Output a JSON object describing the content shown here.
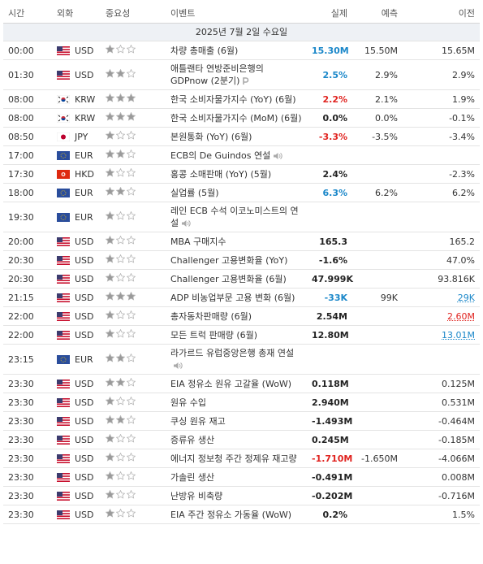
{
  "table": {
    "columns": [
      "시간",
      "외화",
      "중요성",
      "이벤트",
      "실제",
      "예측",
      "이전"
    ],
    "date": "2025년 7월 2일 수요일",
    "rows": [
      {
        "time": "00:00",
        "currency": "USD",
        "importance": 1,
        "event": "차량 총매출 (6월)",
        "actual": "15.30M",
        "actual_color": "#1a87c9",
        "forecast": "15.50M",
        "previous": "15.65M"
      },
      {
        "time": "01:30",
        "currency": "USD",
        "importance": 2,
        "event": "애틀랜타 연방준비은행의 GDPnow (2분기)",
        "actual": "2.5%",
        "actual_color": "#1a87c9",
        "forecast": "2.9%",
        "previous": "2.9%",
        "icon": "preliminary"
      },
      {
        "time": "08:00",
        "currency": "KRW",
        "importance": 3,
        "event": "한국 소비자물가지수 (YoY) (6월)",
        "actual": "2.2%",
        "actual_color": "#e0231f",
        "forecast": "2.1%",
        "previous": "1.9%"
      },
      {
        "time": "08:00",
        "currency": "KRW",
        "importance": 3,
        "event": "한국 소비자물가지수 (MoM) (6월)",
        "actual": "0.0%",
        "forecast": "0.0%",
        "previous": "-0.1%"
      },
      {
        "time": "08:50",
        "currency": "JPY",
        "importance": 1,
        "event": "본원통화 (YoY) (6월)",
        "actual": "-3.3%",
        "actual_color": "#e0231f",
        "forecast": "-3.5%",
        "previous": "-3.4%"
      },
      {
        "time": "17:00",
        "currency": "EUR",
        "importance": 2,
        "event": "ECB의 De Guindos 연설",
        "icon": "speech"
      },
      {
        "time": "17:30",
        "currency": "HKD",
        "importance": 1,
        "event": "홍콩 소매판매 (YoY) (5월)",
        "actual": "2.4%",
        "previous": "-2.3%"
      },
      {
        "time": "18:00",
        "currency": "EUR",
        "importance": 2,
        "event": "실업률 (5월)",
        "actual": "6.3%",
        "actual_color": "#1a87c9",
        "forecast": "6.2%",
        "previous": "6.2%"
      },
      {
        "time": "19:30",
        "currency": "EUR",
        "importance": 1,
        "event": "레인 ECB 수석 이코노미스트의 연설",
        "icon": "speech"
      },
      {
        "time": "20:00",
        "currency": "USD",
        "importance": 1,
        "event": "MBA 구매지수",
        "actual": "165.3",
        "previous": "165.2"
      },
      {
        "time": "20:30",
        "currency": "USD",
        "importance": 1,
        "event": "Challenger 고용변화율 (YoY)",
        "actual": "-1.6%",
        "previous": "47.0%"
      },
      {
        "time": "20:30",
        "currency": "USD",
        "importance": 1,
        "event": "Challenger 고용변화율 (6월)",
        "actual": "47.999K",
        "previous": "93.816K"
      },
      {
        "time": "21:15",
        "currency": "USD",
        "importance": 3,
        "event": "ADP 비농업부문 고용 변화 (6월)",
        "actual": "-33K",
        "actual_color": "#1a87c9",
        "forecast": "99K",
        "previous": "29K",
        "previous_color": "#1a87c9"
      },
      {
        "time": "22:00",
        "currency": "USD",
        "importance": 1,
        "event": "총자동차판매량 (6월)",
        "actual": "2.54M",
        "previous": "2.60M",
        "previous_color": "#e0231f"
      },
      {
        "time": "22:00",
        "currency": "USD",
        "importance": 1,
        "event": "모든 트럭 판매량 (6월)",
        "actual": "12.80M",
        "previous": "13.01M",
        "previous_color": "#1a87c9"
      },
      {
        "time": "23:15",
        "currency": "EUR",
        "importance": 2,
        "event": "라가르드 유럽중앙은행 총재 연설",
        "icon": "speech"
      },
      {
        "time": "23:30",
        "currency": "USD",
        "importance": 2,
        "event": "EIA 정유소 원유 고갈율 (WoW)",
        "actual": "0.118M",
        "previous": "0.125M"
      },
      {
        "time": "23:30",
        "currency": "USD",
        "importance": 1,
        "event": "원유 수입",
        "actual": "2.940M",
        "previous": "0.531M"
      },
      {
        "time": "23:30",
        "currency": "USD",
        "importance": 2,
        "event": "쿠싱 원유 재고",
        "actual": "-1.493M",
        "previous": "-0.464M"
      },
      {
        "time": "23:30",
        "currency": "USD",
        "importance": 1,
        "event": "증류유 생산",
        "actual": "0.245M",
        "previous": "-0.185M"
      },
      {
        "time": "23:30",
        "currency": "USD",
        "importance": 1,
        "event": "에너지 정보청 주간 정제유 재고량",
        "actual": "-1.710M",
        "actual_color": "#e0231f",
        "forecast": "-1.650M",
        "previous": "-4.066M"
      },
      {
        "time": "23:30",
        "currency": "USD",
        "importance": 1,
        "event": "가솔린 생산",
        "actual": "-0.491M",
        "previous": "0.008M"
      },
      {
        "time": "23:30",
        "currency": "USD",
        "importance": 1,
        "event": "난방유 비축량",
        "actual": "-0.202M",
        "previous": "-0.716M"
      },
      {
        "time": "23:30",
        "currency": "USD",
        "importance": 1,
        "event": "EIA 주간 정유소 가동율 (WoW)",
        "actual": "0.2%",
        "previous": "1.5%"
      }
    ]
  }
}
